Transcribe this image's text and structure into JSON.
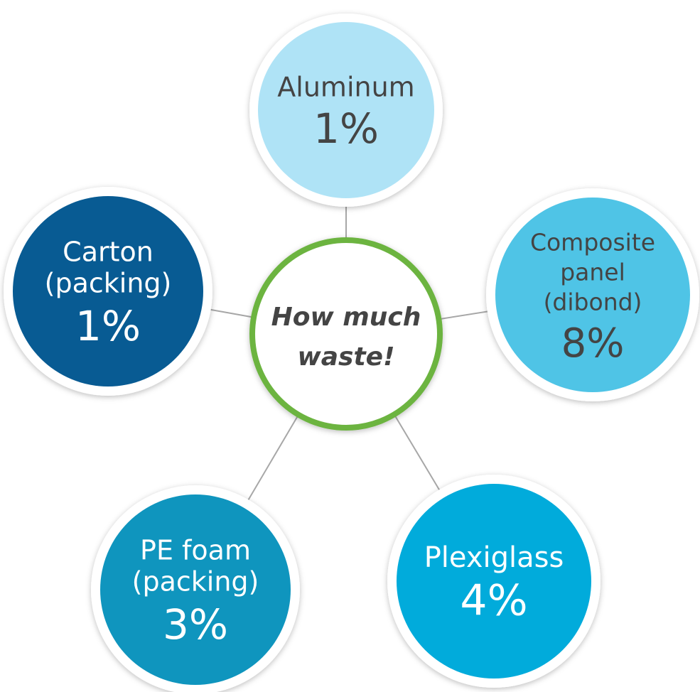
{
  "center": {
    "lines": [
      "How much",
      "waste!"
    ]
  },
  "nodes": [
    {
      "lines": [
        "Aluminum"
      ],
      "value": "1%"
    },
    {
      "lines": [
        "Composite",
        "panel",
        "(dibond)"
      ],
      "value": "8%"
    },
    {
      "lines": [
        "Plexiglass"
      ],
      "value": "4%"
    },
    {
      "lines": [
        "PE foam",
        "(packing)"
      ],
      "value": "3%"
    },
    {
      "lines": [
        "Carton",
        "(packing)"
      ],
      "value": "1%"
    }
  ]
}
